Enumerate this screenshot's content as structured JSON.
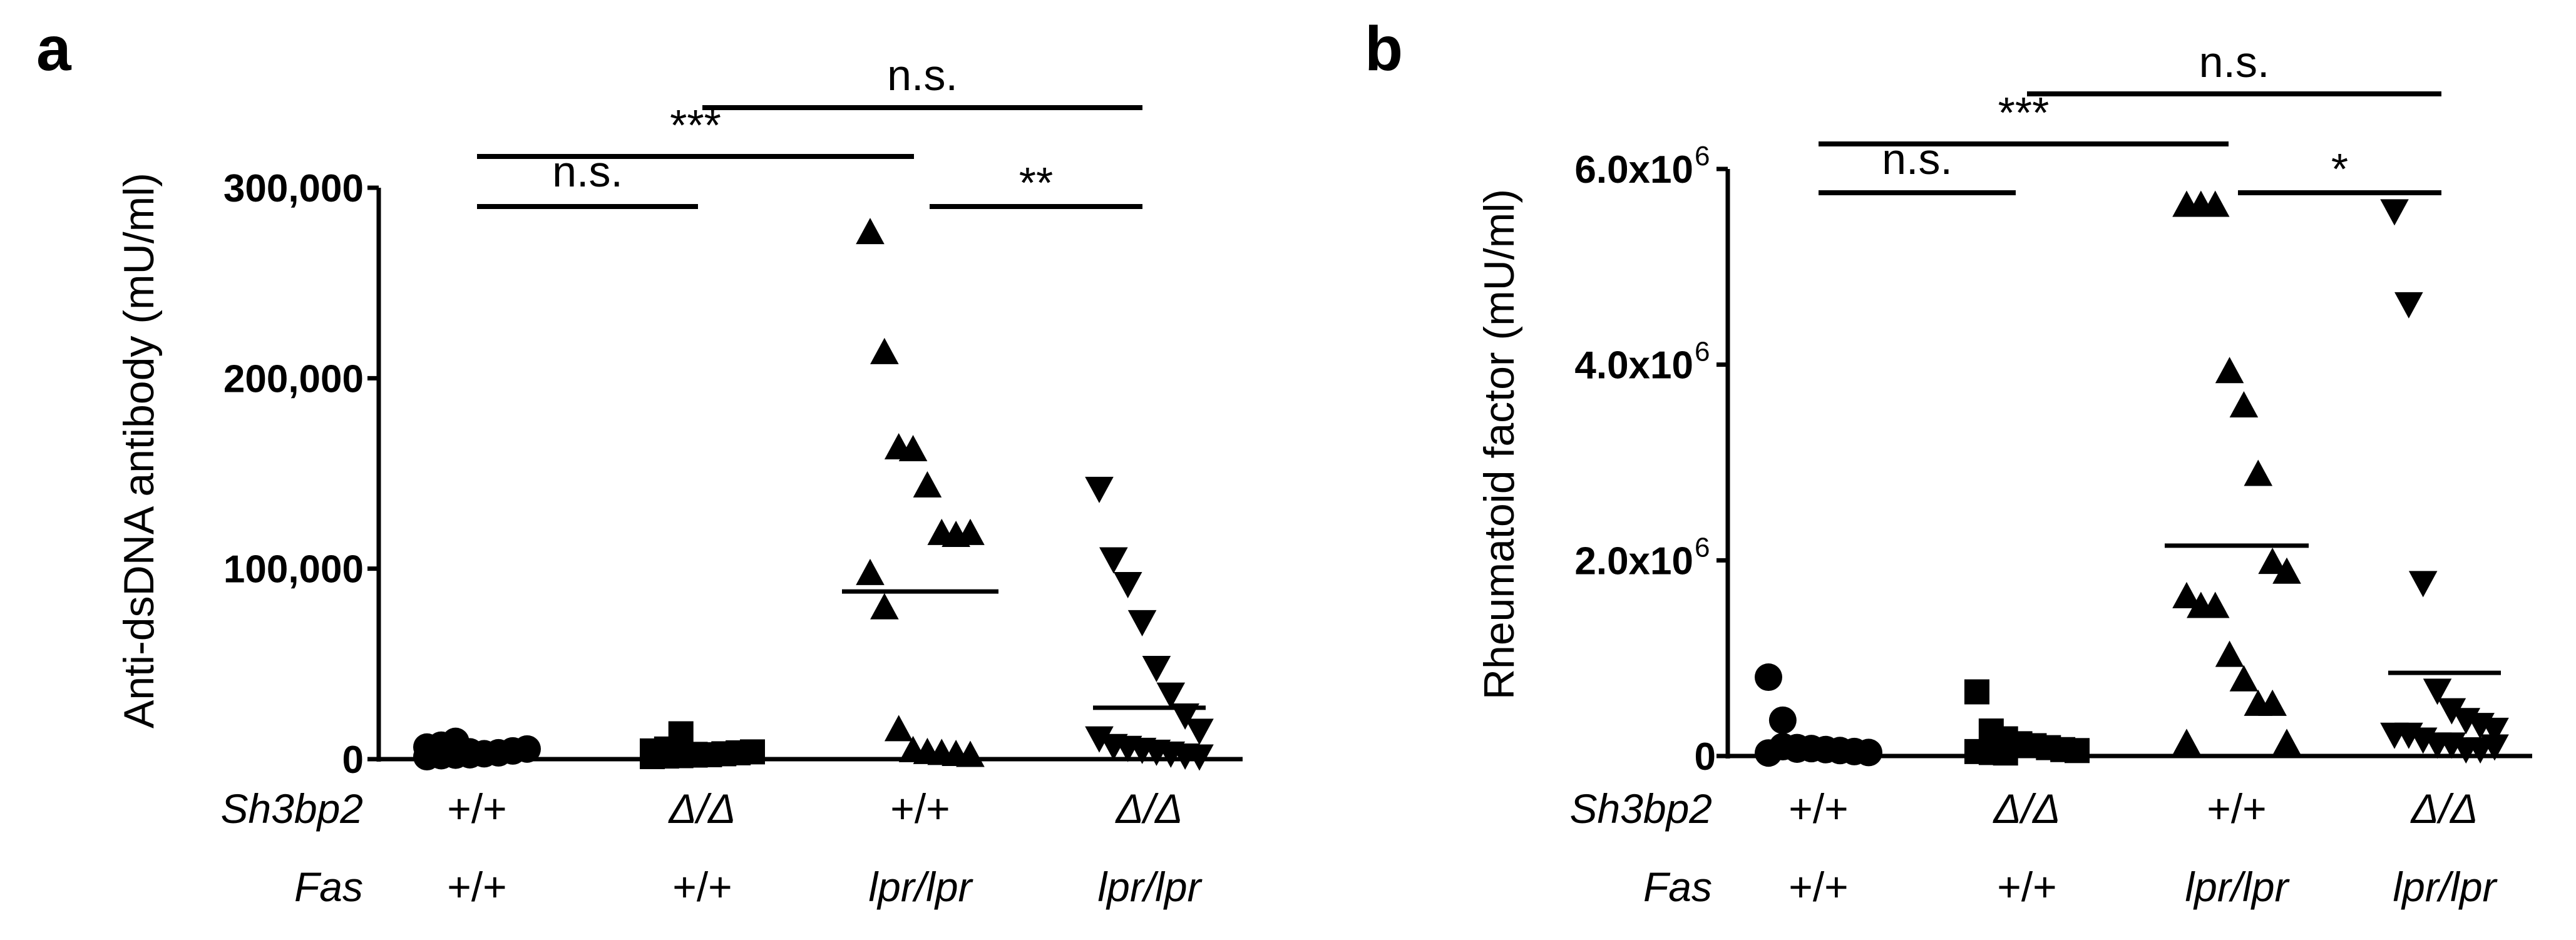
{
  "chart_data": [
    {
      "panel": "a",
      "type": "scatter",
      "title": "",
      "ylabel": "Anti-dsDNA antibody (mU/ml)",
      "ylim": [
        0,
        300000
      ],
      "yticks": [
        0,
        100000,
        200000,
        300000
      ],
      "ytick_labels": [
        "0",
        "100,000",
        "200,000",
        "300,000"
      ],
      "row_labels": [
        "Sh3bp2",
        "Fas"
      ],
      "groups": [
        {
          "sh3bp2": "+/+",
          "fas": "+/+",
          "marker": "circle",
          "mean": 1500,
          "values": [
            0,
            500,
            800,
            1000,
            1500,
            2000,
            3000,
            4000,
            5000,
            6000,
            8000,
            2500
          ]
        },
        {
          "sh3bp2": "Δ/Δ",
          "fas": "+/+",
          "marker": "square",
          "mean": 1200,
          "values": [
            0,
            300,
            500,
            800,
            1000,
            1500,
            2000,
            2500,
            3000,
            4000,
            12000,
            1200
          ]
        },
        {
          "sh3bp2": "+/+",
          "fas": "lpr/lpr",
          "marker": "triangle-up",
          "mean": 88000,
          "values": [
            275000,
            212000,
            162000,
            161000,
            142000,
            117000,
            116000,
            117000,
            96000,
            78000,
            14000,
            3000,
            2000,
            1500,
            1000,
            500
          ]
        },
        {
          "sh3bp2": "Δ/Δ",
          "fas": "lpr/lpr",
          "marker": "triangle-down",
          "mean": 27000,
          "values": [
            141000,
            104000,
            91000,
            71000,
            47000,
            33000,
            22000,
            14000,
            10000,
            6000,
            5000,
            4000,
            3000,
            2000,
            1000,
            500
          ]
        }
      ],
      "comparisons": [
        {
          "from": 0,
          "to": 1,
          "label": "n.s."
        },
        {
          "from": 0,
          "to": 2,
          "label": "***"
        },
        {
          "from": 2,
          "to": 3,
          "label": "**"
        },
        {
          "from": 1,
          "to": 3,
          "label": "n.s."
        }
      ]
    },
    {
      "panel": "b",
      "type": "scatter",
      "title": "",
      "ylabel": "Rheumatoid factor (mU/ml)",
      "ylim": [
        0,
        6000000
      ],
      "yticks": [
        0,
        2000000,
        4000000,
        6000000
      ],
      "ytick_labels": [
        "0",
        "2.0x10",
        "4.0x10",
        "6.0x10"
      ],
      "ytick_exponent": "6",
      "row_labels": [
        "Sh3bp2",
        "Fas"
      ],
      "groups": [
        {
          "sh3bp2": "+/+",
          "fas": "+/+",
          "marker": "circle",
          "mean": 110000,
          "values": [
            780000,
            340000,
            60000,
            50000,
            40000,
            30000,
            20000,
            10000,
            5000,
            70000,
            45000
          ]
        },
        {
          "sh3bp2": "Δ/Δ",
          "fas": "+/+",
          "marker": "square",
          "mean": 120000,
          "values": [
            630000,
            230000,
            150000,
            100000,
            80000,
            60000,
            40000,
            30000,
            20000,
            10000,
            5000,
            90000
          ]
        },
        {
          "sh3bp2": "+/+",
          "fas": "lpr/lpr",
          "marker": "triangle-up",
          "mean": 2150000,
          "values": [
            5600000,
            5600000,
            5600000,
            3900000,
            3550000,
            2850000,
            1950000,
            1850000,
            1600000,
            1500000,
            1500000,
            1000000,
            750000,
            500000,
            500000,
            100000,
            100000
          ]
        },
        {
          "sh3bp2": "Δ/Δ",
          "fas": "lpr/lpr",
          "marker": "triangle-down",
          "mean": 850000,
          "values": [
            5550000,
            4600000,
            1750000,
            650000,
            450000,
            350000,
            300000,
            250000,
            200000,
            200000,
            150000,
            100000,
            100000,
            50000,
            50000,
            80000
          ]
        }
      ],
      "comparisons": [
        {
          "from": 0,
          "to": 1,
          "label": "n.s."
        },
        {
          "from": 0,
          "to": 2,
          "label": "***"
        },
        {
          "from": 2,
          "to": 3,
          "label": "*"
        },
        {
          "from": 1,
          "to": 3,
          "label": "n.s."
        }
      ]
    }
  ]
}
